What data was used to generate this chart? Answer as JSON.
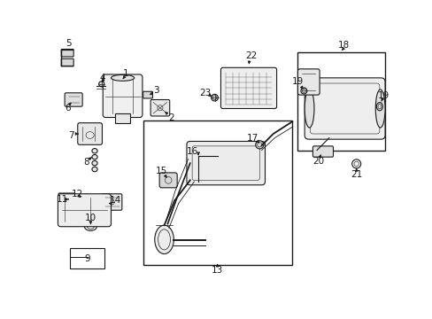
{
  "bg_color": "#ffffff",
  "line_color": "#1a1a1a",
  "lw": 0.8
}
